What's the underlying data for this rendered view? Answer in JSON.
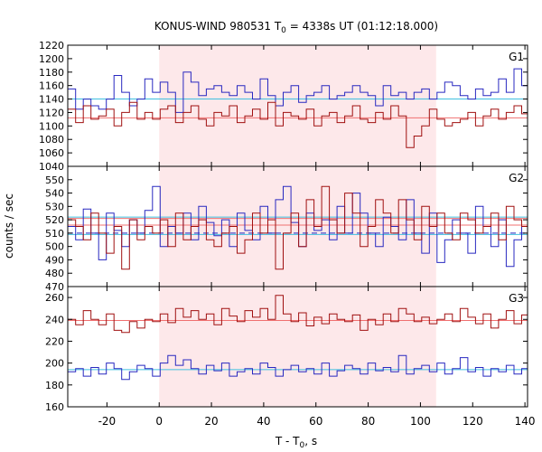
{
  "chart_data": {
    "type": "line",
    "title_prefix": "KONUS-WIND 980531 T",
    "title_sub": "0",
    "title_suffix": " = 4338s UT (01:12:18.000)",
    "xlabel_prefix": "T - T",
    "xlabel_sub": "0",
    "xlabel_suffix": ", s",
    "ylabel": "counts / sec",
    "xlim": [
      -35,
      141
    ],
    "x_ticks": [
      -20,
      0,
      20,
      40,
      60,
      80,
      100,
      120,
      140
    ],
    "bin_width": 2.944,
    "highlight_interval": [
      0,
      106
    ],
    "colors": {
      "highlight": "#fde8ea",
      "red_series": "#a01010",
      "blue_series": "#2828c0",
      "red_background": "#f07070",
      "blue_background": "#40c0e0"
    },
    "panels": [
      {
        "label": "G1",
        "ylim": [
          1040,
          1220
        ],
        "y_ticks": [
          1040,
          1060,
          1080,
          1100,
          1120,
          1140,
          1160,
          1180,
          1200,
          1220
        ],
        "series": [
          {
            "color": "blue_series",
            "values": [
              1155,
              1125,
              1140,
              1130,
              1125,
              1140,
              1175,
              1150,
              1130,
              1140,
              1170,
              1150,
              1165,
              1150,
              1120,
              1180,
              1165,
              1145,
              1155,
              1160,
              1150,
              1145,
              1160,
              1150,
              1140,
              1170,
              1145,
              1130,
              1150,
              1160,
              1135,
              1145,
              1150,
              1160,
              1140,
              1145,
              1150,
              1160,
              1150,
              1145,
              1130,
              1160,
              1145,
              1150,
              1140,
              1150,
              1155,
              1140,
              1150,
              1165,
              1160,
              1145,
              1140,
              1155,
              1145,
              1150,
              1170,
              1150,
              1185,
              1160
            ]
          },
          {
            "color": "red_series",
            "values": [
              1125,
              1105,
              1130,
              1110,
              1115,
              1125,
              1100,
              1120,
              1135,
              1110,
              1120,
              1110,
              1125,
              1130,
              1105,
              1120,
              1130,
              1110,
              1100,
              1120,
              1115,
              1130,
              1105,
              1115,
              1125,
              1110,
              1135,
              1100,
              1120,
              1115,
              1110,
              1125,
              1100,
              1115,
              1120,
              1105,
              1115,
              1130,
              1110,
              1105,
              1120,
              1110,
              1130,
              1115,
              1068,
              1085,
              1100,
              1125,
              1110,
              1100,
              1105,
              1110,
              1120,
              1100,
              1115,
              1125,
              1110,
              1120,
              1130,
              1118
            ]
          }
        ],
        "background_lines": [
          {
            "color": "blue_background",
            "value": 1140
          },
          {
            "color": "red_background",
            "value": 1112
          }
        ]
      },
      {
        "label": "G2",
        "ylim": [
          470,
          560
        ],
        "y_ticks": [
          470,
          480,
          490,
          500,
          510,
          520,
          530,
          540,
          550
        ],
        "series": [
          {
            "color": "blue_series",
            "values": [
              515,
              505,
              528,
              510,
              490,
              525,
              512,
              500,
              520,
              510,
              527,
              545,
              500,
              515,
              510,
              525,
              505,
              530,
              518,
              508,
              520,
              500,
              525,
              512,
              505,
              530,
              510,
              535,
              545,
              518,
              500,
              525,
              512,
              520,
              505,
              530,
              510,
              540,
              525,
              510,
              500,
              522,
              515,
              505,
              535,
              510,
              495,
              525,
              488,
              505,
              520,
              510,
              495,
              530,
              515,
              500,
              520,
              485,
              505,
              515
            ]
          },
          {
            "color": "red_series",
            "values": [
              520,
              515,
              505,
              525,
              510,
              495,
              515,
              483,
              520,
              505,
              515,
              510,
              520,
              500,
              525,
              505,
              515,
              520,
              505,
              500,
              510,
              515,
              495,
              505,
              525,
              510,
              520,
              483,
              510,
              525,
              500,
              535,
              515,
              545,
              520,
              510,
              540,
              525,
              500,
              515,
              535,
              525,
              510,
              535,
              520,
              505,
              530,
              515,
              525,
              510,
              505,
              525,
              520,
              510,
              515,
              525,
              505,
              530,
              520,
              515
            ]
          }
        ],
        "background_lines": [
          {
            "color": "blue_background",
            "value": 509
          },
          {
            "color": "red_background",
            "value": 516
          },
          {
            "color": "blue_background",
            "value": 522
          },
          {
            "color": "red_background",
            "value": 521
          }
        ],
        "dashed_lines": [
          {
            "color": "blue_series",
            "value": 510
          }
        ]
      },
      {
        "label": "G3",
        "ylim": [
          160,
          270
        ],
        "y_ticks": [
          160,
          180,
          200,
          220,
          240,
          260
        ],
        "series": [
          {
            "color": "red_series",
            "values": [
              240,
              235,
              248,
              240,
              235,
              245,
              230,
              228,
              238,
              232,
              240,
              238,
              245,
              237,
              250,
              242,
              248,
              240,
              245,
              235,
              250,
              243,
              238,
              248,
              242,
              250,
              240,
              262,
              245,
              238,
              246,
              234,
              242,
              236,
              245,
              240,
              238,
              244,
              230,
              240,
              235,
              245,
              238,
              250,
              245,
              238,
              242,
              236,
              240,
              245,
              238,
              250,
              242,
              236,
              245,
              232,
              240,
              248,
              236,
              244
            ]
          },
          {
            "color": "blue_series",
            "values": [
              192,
              195,
              188,
              196,
              190,
              200,
              195,
              185,
              192,
              198,
              195,
              188,
              200,
              207,
              198,
              203,
              195,
              190,
              198,
              193,
              200,
              188,
              192,
              195,
              190,
              200,
              196,
              188,
              194,
              198,
              192,
              195,
              190,
              200,
              188,
              193,
              198,
              195,
              190,
              200,
              193,
              196,
              192,
              207,
              190,
              195,
              198,
              192,
              200,
              190,
              195,
              205,
              192,
              196,
              188,
              195,
              192,
              198,
              190,
              195
            ]
          }
        ],
        "background_lines": [
          {
            "color": "red_background",
            "value": 239
          },
          {
            "color": "blue_background",
            "value": 194
          }
        ]
      }
    ]
  }
}
